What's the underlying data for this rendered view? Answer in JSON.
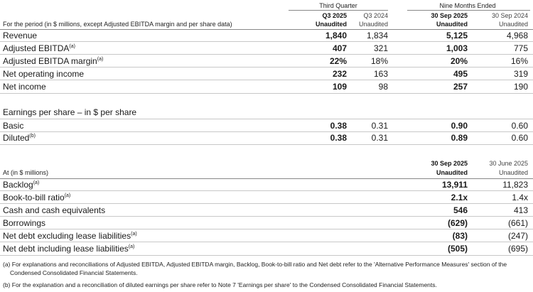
{
  "top_header": {
    "group_left": "Third Quarter",
    "group_right": "Nine Months Ended",
    "caption": "For the period (in $ millions, except Adjusted EBITDA margin and per share data)",
    "columns": [
      {
        "line1": "Q3 2025",
        "line2": "Unaudited"
      },
      {
        "line1": "Q3 2024",
        "line2": "Unaudited"
      },
      {
        "line1": "30 Sep 2025",
        "line2": "Unaudited"
      },
      {
        "line1": "30 Sep 2024",
        "line2": "Unaudited"
      }
    ]
  },
  "income_rows": [
    {
      "label": "Revenue",
      "sup": "",
      "v": [
        "1,840",
        "1,834",
        "5,125",
        "4,968"
      ]
    },
    {
      "label": "Adjusted EBITDA",
      "sup": "(a)",
      "v": [
        "407",
        "321",
        "1,003",
        "775"
      ]
    },
    {
      "label": "Adjusted EBITDA margin",
      "sup": "(a)",
      "v": [
        "22%",
        "18%",
        "20%",
        "16%"
      ]
    },
    {
      "label": "Net operating income",
      "sup": "",
      "v": [
        "232",
        "163",
        "495",
        "319"
      ]
    },
    {
      "label": "Net income",
      "sup": "",
      "v": [
        "109",
        "98",
        "257",
        "190"
      ]
    }
  ],
  "eps": {
    "title": "Earnings per share – in $ per share",
    "rows": [
      {
        "label": "Basic",
        "sup": "",
        "v": [
          "0.38",
          "0.31",
          "0.90",
          "0.60"
        ]
      },
      {
        "label": "Diluted",
        "sup": "(b)",
        "v": [
          "0.38",
          "0.31",
          "0.89",
          "0.60"
        ]
      }
    ]
  },
  "bottom_header": {
    "caption": "At (in $ millions)",
    "columns": [
      {
        "line1": "30 Sep 2025",
        "line2": "Unaudited"
      },
      {
        "line1": "30 June 2025",
        "line2": "Unaudited"
      }
    ]
  },
  "balance_rows": [
    {
      "label": "Backlog",
      "sup": "(a)",
      "v": [
        "13,911",
        "11,823"
      ]
    },
    {
      "label": "Book-to-bill ratio",
      "sup": "(a)",
      "v": [
        "2.1x",
        "1.4x"
      ]
    },
    {
      "label": "Cash and cash equivalents",
      "sup": "",
      "v": [
        "546",
        "413"
      ]
    },
    {
      "label": "Borrowings",
      "sup": "",
      "v": [
        "(629)",
        "(661)"
      ]
    },
    {
      "label": "Net debt excluding lease liabilities",
      "sup": "(a)",
      "v": [
        "(83)",
        "(247)"
      ]
    },
    {
      "label": "Net debt including lease liabilities",
      "sup": "(a)",
      "v": [
        "(505)",
        "(695)"
      ]
    }
  ],
  "footnotes": {
    "a_line1": "(a) For explanations and reconciliations of Adjusted EBITDA, Adjusted EBITDA margin, Backlog, Book-to-bill ratio and Net debt refer to the 'Alternative Performance Measures' section of the",
    "a_line2": "Condensed Consolidated Financial Statements.",
    "b": "(b) For the explanation and a reconciliation of diluted earnings per share refer to Note 7 'Earnings per share' to the Condensed Consolidated Financial Statements."
  }
}
